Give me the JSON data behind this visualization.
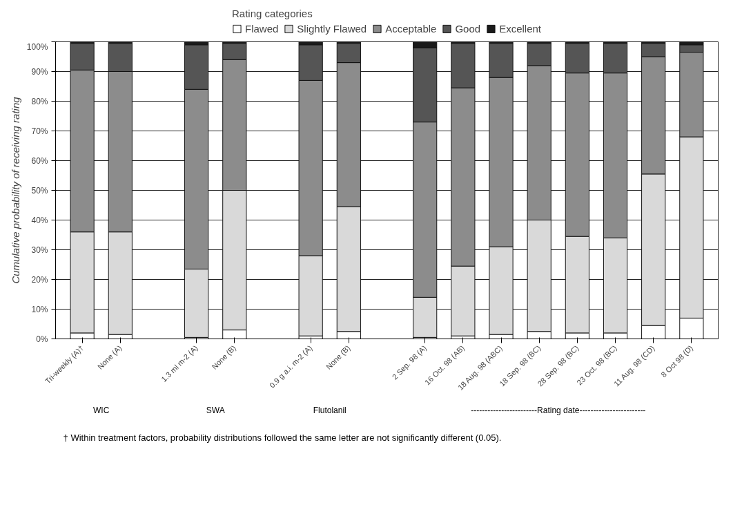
{
  "chart_data": {
    "type": "bar",
    "stacked": true,
    "categories": [
      "Tri-weekly (A)†",
      "None (A)",
      null,
      "1.3 ml m-2 (A)",
      "None (B)",
      null,
      "0.9 g a.i. m-2 (A)",
      "None (B)",
      null,
      "2 Sep. 98 (A)",
      "16 Oct. 98 (AB)",
      "18 Aug. 98 (ABC)",
      "18 Sep. 98 (BC)",
      "28 Sep. 98 (BC)",
      "23 Oct. 98 (BC)",
      "11 Aug. 98 (CD)",
      "8 Oct 98 (D)"
    ],
    "series": [
      {
        "name": "Flawed",
        "color": "#ffffff",
        "values": [
          2,
          1.5,
          null,
          0.5,
          3,
          null,
          1,
          2.5,
          null,
          0.5,
          1,
          1.5,
          2.5,
          2,
          2,
          4.5,
          7
        ]
      },
      {
        "name": "Slightly Flawed",
        "color": "#d9d9d9",
        "values": [
          34,
          34.5,
          null,
          23,
          47,
          null,
          27,
          42,
          null,
          13.5,
          23.5,
          29.5,
          37.5,
          32.5,
          32,
          51,
          61
        ]
      },
      {
        "name": "Acceptable",
        "color": "#8c8c8c",
        "values": [
          54.5,
          54,
          null,
          60.5,
          44,
          null,
          59,
          48.5,
          null,
          59,
          60,
          57,
          52,
          55,
          55.5,
          39.5,
          28.5
        ]
      },
      {
        "name": "Good",
        "color": "#555555",
        "values": [
          9,
          9.5,
          null,
          15,
          5.5,
          null,
          12,
          6.5,
          null,
          25,
          15,
          11.5,
          7.5,
          10,
          10,
          4.5,
          2.5
        ]
      },
      {
        "name": "Excellent",
        "color": "#1a1a1a",
        "values": [
          0.5,
          0.5,
          null,
          1,
          0.5,
          null,
          1,
          0.5,
          null,
          2,
          0.5,
          0.5,
          0.5,
          0.5,
          0.5,
          0.5,
          1
        ]
      }
    ],
    "ylim": [
      0,
      100
    ],
    "yticks": [
      {
        "value": 0,
        "label": "0%"
      },
      {
        "value": 10,
        "label": "10%"
      },
      {
        "value": 20,
        "label": "20%"
      },
      {
        "value": 30,
        "label": "30%"
      },
      {
        "value": 40,
        "label": "40%"
      },
      {
        "value": 50,
        "label": "50%"
      },
      {
        "value": 60,
        "label": "60%"
      },
      {
        "value": 70,
        "label": "70%"
      },
      {
        "value": 80,
        "label": "80%"
      },
      {
        "value": 90,
        "label": "90%"
      },
      {
        "value": 100,
        "label": "100%"
      }
    ],
    "ylabel": "Cumulative probability of receiving rating",
    "legend_title": "Rating categories",
    "legend": "top",
    "grid": "y",
    "annotations": [
      "WIC",
      "SWA",
      "Flutolanil",
      "------------------------Rating date------------------------",
      "† Within treatment factors, probability distributions followed the same letter are not significantly different (0.05)."
    ]
  }
}
